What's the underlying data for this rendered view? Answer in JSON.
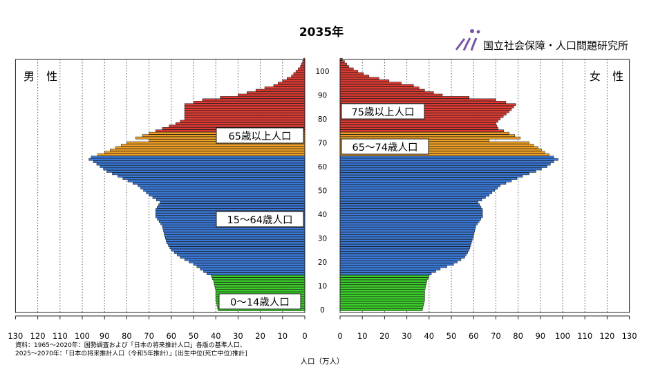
{
  "chart_data": {
    "type": "population-pyramid",
    "title": "2035年",
    "organization": "国立社会保障・人口問題研究所",
    "left_label": "男 性",
    "right_label": "女 性",
    "xlabel": "人口（万人）",
    "x_max": 130,
    "x_ticks": [
      130,
      120,
      110,
      100,
      90,
      80,
      70,
      60,
      50,
      40,
      30,
      20,
      10,
      0
    ],
    "x_ticks_right": [
      0,
      10,
      20,
      30,
      40,
      50,
      60,
      70,
      80,
      90,
      100,
      110,
      120,
      130
    ],
    "age_ticks": [
      0,
      10,
      20,
      30,
      40,
      50,
      60,
      70,
      80,
      90,
      100
    ],
    "age_max": 105,
    "source_lines": [
      "資料：1965～2020年：国勢調査および「日本の将来推計人口」各版の基準人口、",
      "2025～2070年：「日本の将来推計人口（令和5年推計）」[出生中位(死亡中位)推計]"
    ],
    "groups": [
      {
        "name": "0～14歳人口",
        "from": 0,
        "to": 14,
        "color": "#3bd12a"
      },
      {
        "name": "15～64歳人口",
        "from": 15,
        "to": 64,
        "color": "#3a78d6"
      },
      {
        "name": "65～74歳人口",
        "from": 65,
        "to": 74,
        "color": "#f0a125"
      },
      {
        "name": "75歳以上人口",
        "from": 75,
        "to": 105,
        "color": "#dd3b33"
      }
    ],
    "male_labels": {
      "senior": "65歳以上人口",
      "working": "15～64歳人口",
      "child": "0～14歳人口"
    },
    "female_labels": {
      "old": "75歳以上人口",
      "young_old": "65～74歳人口"
    },
    "male_knots": [
      [
        0,
        39
      ],
      [
        4,
        40
      ],
      [
        8,
        40
      ],
      [
        12,
        41
      ],
      [
        14,
        42
      ],
      [
        15,
        44
      ],
      [
        17,
        47
      ],
      [
        19,
        50
      ],
      [
        22,
        56
      ],
      [
        25,
        60
      ],
      [
        28,
        62
      ],
      [
        31,
        63
      ],
      [
        35,
        64
      ],
      [
        39,
        67
      ],
      [
        42,
        67
      ],
      [
        45,
        65
      ],
      [
        48,
        70
      ],
      [
        52,
        75
      ],
      [
        56,
        84
      ],
      [
        58,
        89
      ],
      [
        60,
        92
      ],
      [
        62,
        95
      ],
      [
        63,
        97
      ],
      [
        64,
        96
      ],
      [
        66,
        90
      ],
      [
        68,
        85
      ],
      [
        70,
        80
      ],
      [
        71,
        70
      ],
      [
        72,
        76
      ],
      [
        74,
        70
      ],
      [
        76,
        64
      ],
      [
        78,
        58
      ],
      [
        80,
        54
      ],
      [
        83,
        54
      ],
      [
        86,
        54
      ],
      [
        88,
        46
      ],
      [
        90,
        30
      ],
      [
        92,
        22
      ],
      [
        94,
        14
      ],
      [
        96,
        10
      ],
      [
        98,
        6
      ],
      [
        100,
        4
      ],
      [
        102,
        2
      ],
      [
        104,
        1
      ],
      [
        105,
        0.5
      ]
    ],
    "female_knots": [
      [
        0,
        37
      ],
      [
        4,
        38
      ],
      [
        8,
        38
      ],
      [
        12,
        39
      ],
      [
        14,
        40
      ],
      [
        15,
        41
      ],
      [
        17,
        45
      ],
      [
        19,
        51
      ],
      [
        22,
        56
      ],
      [
        25,
        58
      ],
      [
        28,
        59
      ],
      [
        31,
        60
      ],
      [
        35,
        61
      ],
      [
        39,
        64
      ],
      [
        42,
        64
      ],
      [
        45,
        62
      ],
      [
        48,
        67
      ],
      [
        52,
        72
      ],
      [
        56,
        82
      ],
      [
        58,
        88
      ],
      [
        60,
        93
      ],
      [
        62,
        96
      ],
      [
        63,
        98
      ],
      [
        64,
        96
      ],
      [
        66,
        92
      ],
      [
        68,
        89
      ],
      [
        70,
        85
      ],
      [
        71,
        67
      ],
      [
        72,
        81
      ],
      [
        74,
        76
      ],
      [
        76,
        71
      ],
      [
        78,
        70
      ],
      [
        80,
        72
      ],
      [
        83,
        76
      ],
      [
        86,
        79
      ],
      [
        88,
        70
      ],
      [
        90,
        46
      ],
      [
        92,
        38
      ],
      [
        94,
        33
      ],
      [
        96,
        22
      ],
      [
        98,
        13
      ],
      [
        100,
        8
      ],
      [
        102,
        4
      ],
      [
        104,
        2
      ],
      [
        105,
        1
      ]
    ]
  }
}
